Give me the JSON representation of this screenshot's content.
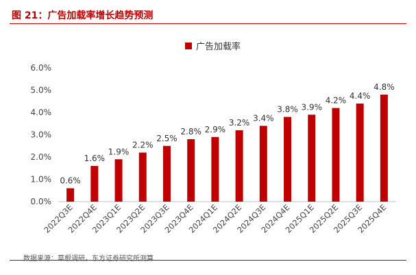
{
  "figure": {
    "title": "图 21：广告加载率增长趋势预测",
    "source": "数据来源：草根调研，东方证券研究所测算"
  },
  "colors": {
    "bar": "#c00000",
    "accent": "#c00000"
  },
  "chart_data": {
    "type": "bar",
    "title": "",
    "xlabel": "",
    "ylabel": "",
    "legend_position": "top-center",
    "grid": false,
    "series": [
      {
        "name": "广告加载率",
        "values": [
          0.6,
          1.6,
          1.9,
          2.2,
          2.5,
          2.8,
          2.9,
          3.2,
          3.4,
          3.8,
          3.9,
          4.2,
          4.4,
          4.8
        ],
        "labels": [
          "0.6%",
          "1.6%",
          "1.9%",
          "2.2%",
          "2.5%",
          "2.8%",
          "2.9%",
          "3.2%",
          "3.4%",
          "3.8%",
          "3.9%",
          "4.2%",
          "4.4%",
          "4.8%"
        ]
      }
    ],
    "categories": [
      "2022Q3E",
      "2022Q4E",
      "2023Q1E",
      "2023Q2E",
      "2023Q3E",
      "2023Q4E",
      "2024Q1E",
      "2024Q2E",
      "2024Q3E",
      "2024Q4E",
      "2025Q1E",
      "2025Q2E",
      "2025Q3E",
      "2025Q4E"
    ],
    "ylim": [
      0,
      6
    ],
    "yticks": [
      0,
      1,
      2,
      3,
      4,
      5,
      6
    ],
    "ytick_labels": [
      "0.0%",
      "1.0%",
      "2.0%",
      "3.0%",
      "4.0%",
      "5.0%",
      "6.0%"
    ]
  }
}
